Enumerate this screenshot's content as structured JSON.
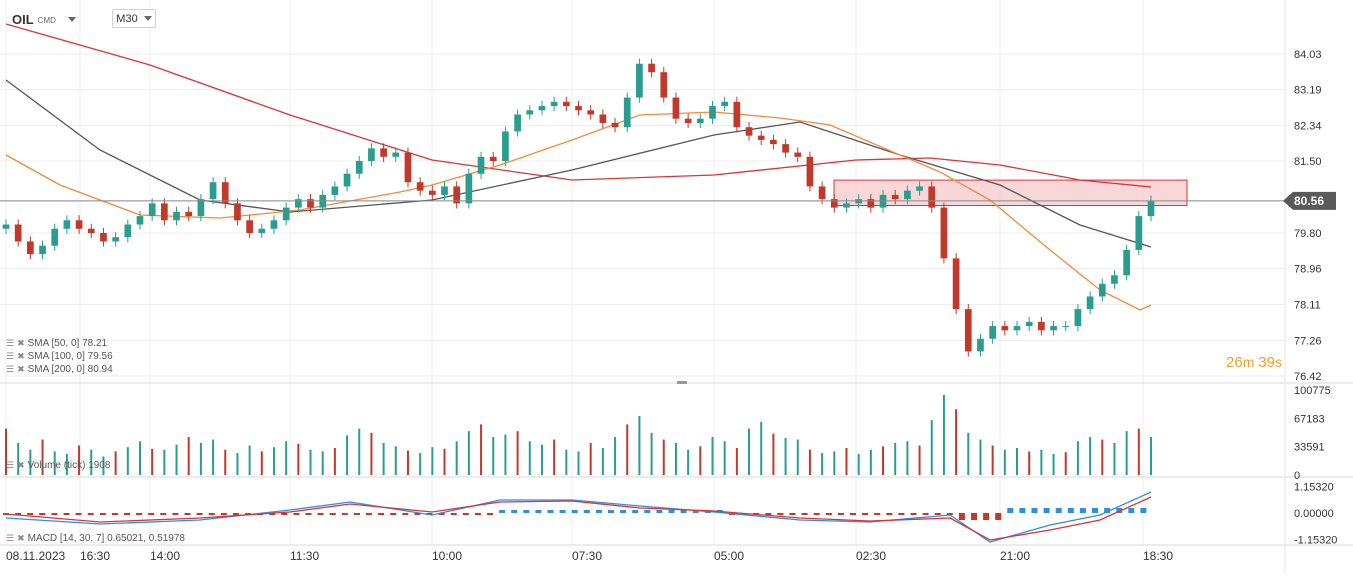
{
  "header": {
    "symbol": "OIL",
    "symbol_sub": "CMD",
    "timeframe": "M30"
  },
  "indicators": {
    "sma50": "SMA [50, 0] 78.21",
    "sma100": "SMA [100, 0] 79.56",
    "sma200": "SMA [200, 0] 80.94",
    "volume": "Volume (tick) 1908",
    "macd": "MACD [14, 30, 7] 0.65021, 0.51978"
  },
  "countdown": {
    "min": "26",
    "min_unit": "m",
    "sec": "39",
    "sec_unit": "s"
  },
  "colors": {
    "bull": "#2a9d8f",
    "bear": "#c0392b",
    "sma50": "#f08c3a",
    "sma100": "#555555",
    "sma200": "#d9343a",
    "zone_fill": "#f6c9cc",
    "zone_border": "#d9343a",
    "price_label_bg": "#5a5a5a",
    "macd_line": "#2f8fd8",
    "signal_line": "#d9343a"
  },
  "chart_data": [
    {
      "type": "candlestick",
      "title": "OIL CMD M30",
      "y_ticks": [
        "84.03",
        "83.19",
        "82.34",
        "81.50",
        "80.56",
        "79.80",
        "78.96",
        "78.11",
        "77.26",
        "76.42"
      ],
      "current_price": "80.56",
      "ylim": [
        76.42,
        84.03
      ],
      "x_ticks": [
        "08.11.2023",
        "16:30",
        "14:00",
        "11:30",
        "10:00",
        "07:30",
        "05:00",
        "02:30",
        "21:00",
        "18:30"
      ],
      "zone": {
        "price_low": 80.45,
        "price_high": 81.05
      },
      "closes": [
        80.0,
        79.6,
        79.3,
        79.5,
        79.9,
        80.1,
        79.9,
        79.8,
        79.6,
        79.7,
        80.0,
        80.2,
        80.5,
        80.1,
        80.3,
        80.2,
        80.6,
        81.0,
        80.5,
        80.1,
        79.8,
        79.9,
        80.1,
        80.4,
        80.6,
        80.4,
        80.7,
        80.9,
        81.2,
        81.5,
        81.8,
        81.6,
        81.7,
        81.0,
        80.8,
        80.7,
        80.9,
        80.5,
        81.2,
        81.6,
        81.5,
        82.2,
        82.6,
        82.7,
        82.8,
        82.9,
        82.8,
        82.7,
        82.6,
        82.4,
        82.3,
        83.0,
        83.8,
        83.6,
        83.0,
        82.5,
        82.4,
        82.5,
        82.8,
        82.9,
        82.3,
        82.1,
        82.0,
        81.9,
        81.7,
        81.6,
        80.9,
        80.6,
        80.4,
        80.5,
        80.6,
        80.4,
        80.7,
        80.6,
        80.8,
        80.9,
        80.4,
        79.2,
        78.0,
        77.0,
        77.3,
        77.6,
        77.5,
        77.6,
        77.7,
        77.5,
        77.6,
        77.6,
        78.0,
        78.3,
        78.6,
        78.8,
        79.4,
        80.2,
        80.56
      ],
      "x_start": 6,
      "x_end": 1151,
      "volume": {
        "y_ticks": [
          "100775",
          "67183",
          "33591",
          "0"
        ],
        "ylim": [
          0,
          100775
        ],
        "values": [
          55000,
          38000,
          30000,
          42000,
          28000,
          25000,
          35000,
          30000,
          22000,
          28000,
          33000,
          40000,
          31000,
          30000,
          36000,
          45000,
          38000,
          42000,
          30000,
          26000,
          35000,
          28000,
          33000,
          40000,
          37000,
          30000,
          28000,
          32000,
          47000,
          55000,
          50000,
          38000,
          34000,
          29000,
          26000,
          33000,
          31000,
          40000,
          52000,
          60000,
          45000,
          48000,
          52000,
          40000,
          36000,
          42000,
          30000,
          28000,
          38000,
          32000,
          45000,
          60000,
          70000,
          50000,
          42000,
          38000,
          30000,
          34000,
          45000,
          40000,
          32000,
          55000,
          63000,
          49000,
          44000,
          42000,
          30000,
          26000,
          28000,
          32000,
          25000,
          30000,
          34000,
          38000,
          40000,
          35000,
          65000,
          95000,
          78000,
          50000,
          42000,
          35000,
          30000,
          32000,
          28000,
          30000,
          25000,
          27000,
          40000,
          45000,
          42000,
          38000,
          52000,
          55000,
          45000
        ]
      },
      "macd": {
        "y_ticks": [
          "1.15320",
          "0.00000",
          "-1.15320"
        ],
        "ylim": [
          -1.3,
          1.3
        ]
      }
    }
  ]
}
